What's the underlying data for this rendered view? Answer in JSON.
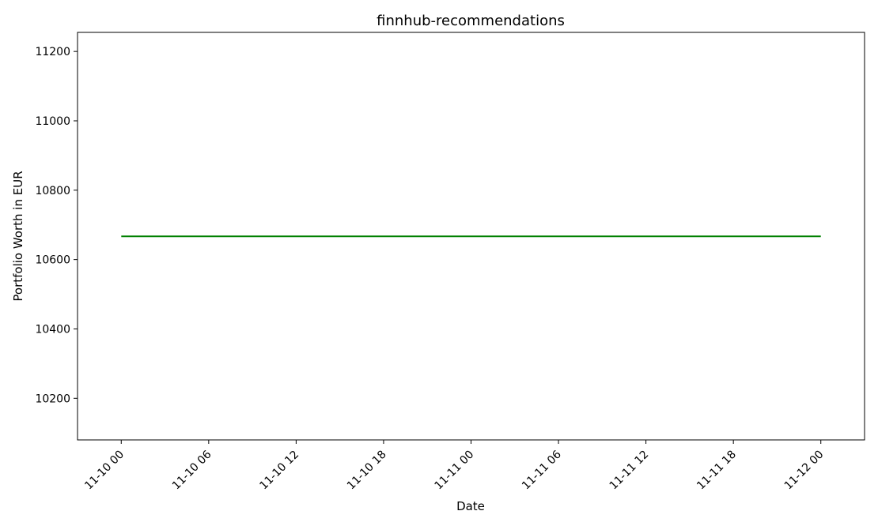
{
  "chart_data": {
    "type": "line",
    "title": "finnhub-recommendations",
    "xlabel": "Date",
    "ylabel": "Portfolio Worth in EUR",
    "x_ticks": [
      "11-10 00",
      "11-10 06",
      "11-10 12",
      "11-10 18",
      "11-11 00",
      "11-11 06",
      "11-11 12",
      "11-11 18",
      "11-12 00"
    ],
    "y_ticks": [
      10200,
      10400,
      10600,
      10800,
      11000,
      11200
    ],
    "ylim": [
      10080,
      11255
    ],
    "xlim": [
      "11-09 21",
      "11-12 03"
    ],
    "grid": false,
    "series": [
      {
        "color": "#008000",
        "points": [
          {
            "x": "11-10 00",
            "y": 10667
          },
          {
            "x": "11-12 00",
            "y": 10667
          }
        ]
      }
    ]
  }
}
